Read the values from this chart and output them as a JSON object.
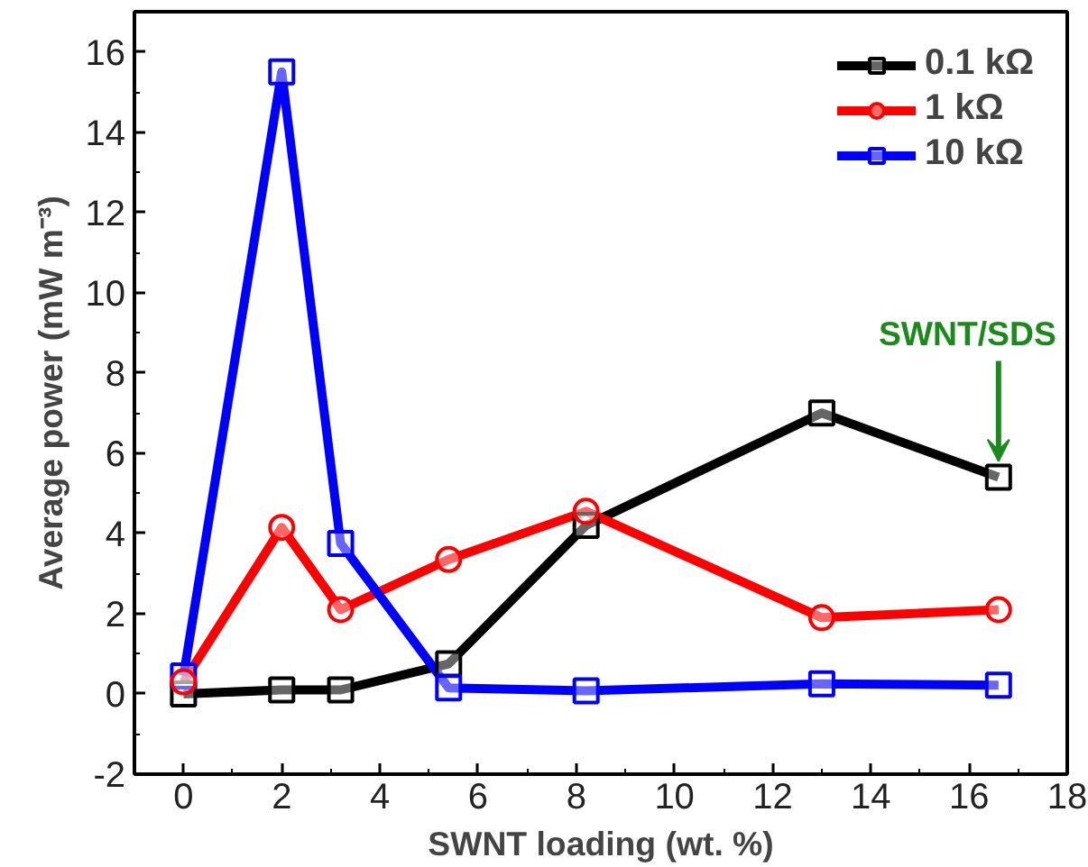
{
  "chart_data": {
    "type": "line",
    "xlabel": "SWNT loading (wt. %)",
    "ylabel": "Average power (mW m⁻³)",
    "x": [
      0,
      2,
      3.2,
      5.4,
      8.2,
      13,
      16.6
    ],
    "series": [
      {
        "name": "0.1 kΩ",
        "color": "#000000",
        "marker": "square",
        "values": [
          0,
          0.1,
          0.1,
          0.75,
          4.2,
          7.0,
          5.4
        ]
      },
      {
        "name": "1 kΩ",
        "color": "#ff0000",
        "marker": "circle",
        "values": [
          0.3,
          4.15,
          2.1,
          3.35,
          4.55,
          1.9,
          2.1
        ]
      },
      {
        "name": "10 kΩ",
        "color": "#0000ff",
        "marker": "square",
        "values": [
          0.45,
          15.5,
          3.75,
          0.15,
          0.08,
          0.25,
          0.22
        ]
      }
    ],
    "annotations": [
      {
        "text": "SWNT/SDS",
        "x": 16.6,
        "y": 5.4
      }
    ],
    "xlim": [
      -1,
      18
    ],
    "xticks": [
      0,
      2,
      4,
      6,
      8,
      10,
      12,
      14,
      16,
      18
    ],
    "ylim": [
      -2,
      17
    ],
    "yticks": [
      -2,
      0,
      2,
      4,
      6,
      8,
      10,
      12,
      14,
      16
    ],
    "grid": false,
    "legend": "top right",
    "line_style": "solid"
  }
}
